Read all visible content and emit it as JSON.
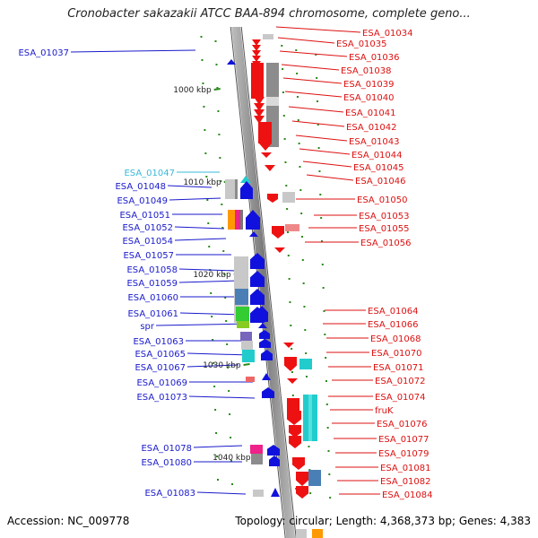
{
  "title": "Cronobacter sakazakii ATCC BAA-894 chromosome, complete geno...",
  "footer": {
    "accession": "Accession: NC_009778",
    "summary": "Topology: circular; Length: 4,368,373 bp; Genes: 4,383"
  },
  "colors": {
    "backbone": "#8a8a8a",
    "left_label": "#1a1acc",
    "left_label_highlight": "#3ab8d8",
    "right_label": "#dd1111",
    "tick": "#2a8a1a",
    "leader_blue": "#1a1acc",
    "leader_red": "#dd1111",
    "gene_red": "#ee1111",
    "gene_blue": "#1111dd",
    "gene_gray": "#8c8c8c",
    "gene_lightgray": "#c8c8c8",
    "gene_teal": "#22cccc",
    "gene_green": "#33cc33",
    "gene_pink": "#ee2288",
    "gene_orange": "#ff9900",
    "gene_steel": "#4a7fb5",
    "gene_purple": "#7766bb"
  },
  "scale_labels": [
    "1000 kbp",
    "1010 kbp",
    "1020 kbp",
    "1030 kbp",
    "1040 kbp"
  ],
  "left_labels": [
    "ESA_01037",
    "ESA_01047",
    "ESA_01048",
    "ESA_01049",
    "ESA_01051",
    "ESA_01052",
    "ESA_01054",
    "ESA_01057",
    "ESA_01058",
    "ESA_01059",
    "ESA_01060",
    "ESA_01061",
    "spr",
    "ESA_01063",
    "ESA_01065",
    "ESA_01067",
    "ESA_01069",
    "ESA_01073",
    "ESA_01078",
    "ESA_01080",
    "ESA_01083"
  ],
  "right_labels": [
    "ESA_01034",
    "ESA_01035",
    "ESA_01036",
    "ESA_01038",
    "ESA_01039",
    "ESA_01040",
    "ESA_01041",
    "ESA_01042",
    "ESA_01043",
    "ESA_01044",
    "ESA_01045",
    "ESA_01046",
    "ESA_01050",
    "ESA_01053",
    "ESA_01055",
    "ESA_01056",
    "ESA_01064",
    "ESA_01066",
    "ESA_01068",
    "ESA_01070",
    "ESA_01071",
    "ESA_01072",
    "ESA_01074",
    "fruK",
    "ESA_01076",
    "ESA_01077",
    "ESA_01079",
    "ESA_01081",
    "ESA_01082",
    "ESA_01084"
  ]
}
